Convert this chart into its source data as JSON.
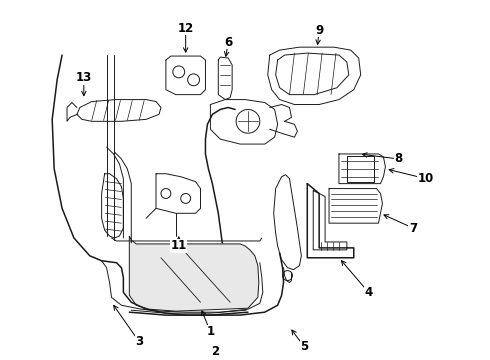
{
  "bg_color": "#ffffff",
  "line_color": "#1a1a1a",
  "fig_width": 4.9,
  "fig_height": 3.6,
  "dpi": 100,
  "label_fontsize": 8.5,
  "label_bold": true
}
